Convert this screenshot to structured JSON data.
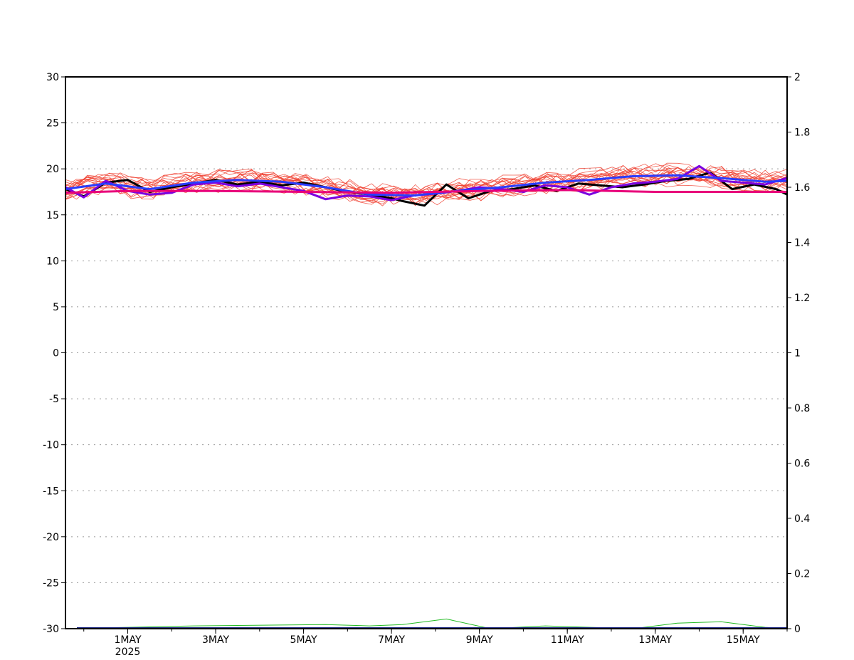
{
  "chart_data": {
    "type": "line",
    "title": "",
    "xlabel": "",
    "ylabel": "",
    "y2label": "",
    "x_range_days": [
      "2025-04-29T14:00",
      "2025-05-16T00:00"
    ],
    "x_ticks": [
      {
        "date": "2025-05-01",
        "label": "1MAY",
        "sublabel": "2025"
      },
      {
        "date": "2025-05-03",
        "label": "3MAY",
        "sublabel": ""
      },
      {
        "date": "2025-05-05",
        "label": "5MAY",
        "sublabel": ""
      },
      {
        "date": "2025-05-07",
        "label": "7MAY",
        "sublabel": ""
      },
      {
        "date": "2025-05-09",
        "label": "9MAY",
        "sublabel": ""
      },
      {
        "date": "2025-05-11",
        "label": "11MAY",
        "sublabel": ""
      },
      {
        "date": "2025-05-13",
        "label": "13MAY",
        "sublabel": ""
      },
      {
        "date": "2025-05-15",
        "label": "15MAY",
        "sublabel": ""
      }
    ],
    "ylim": [
      -30,
      30
    ],
    "y_ticks": [
      "30",
      "25",
      "20",
      "15",
      "10",
      "5",
      "0",
      "-5",
      "-10",
      "-15",
      "-20",
      "-25",
      "-30"
    ],
    "y2lim": [
      0,
      2
    ],
    "y2_ticks": [
      "2",
      "1.8",
      "1.6",
      "1.4",
      "1.2",
      "1",
      "0.8",
      "0.6",
      "0.4",
      "0.2",
      "0"
    ],
    "grid": true,
    "series": [
      {
        "color": "#000000",
        "width": 3,
        "axis": "left",
        "x": [
          "2025-04-29T14:00",
          "2025-04-30T00:00",
          "2025-04-30T12:00",
          "2025-05-01T00:00",
          "2025-05-01T12:00",
          "2025-05-02T00:00",
          "2025-05-02T12:00",
          "2025-05-03T00:00",
          "2025-05-03T12:00",
          "2025-05-04T00:00",
          "2025-05-04T12:00",
          "2025-05-05T00:00",
          "2025-05-05T12:00",
          "2025-05-06T00:00",
          "2025-05-06T12:00",
          "2025-05-07T00:00",
          "2025-05-07T06:00",
          "2025-05-07T18:00",
          "2025-05-08T06:00",
          "2025-05-08T18:00",
          "2025-05-09T06:00",
          "2025-05-09T18:00",
          "2025-05-10T06:00",
          "2025-05-10T18:00",
          "2025-05-11T06:00",
          "2025-05-11T18:00",
          "2025-05-12T06:00",
          "2025-05-12T18:00",
          "2025-05-13T06:00",
          "2025-05-13T18:00",
          "2025-05-14T06:00",
          "2025-05-14T18:00",
          "2025-05-15T06:00",
          "2025-05-15T18:00",
          "2025-05-16T00:00"
        ],
        "y": [
          17.8,
          17.0,
          18.5,
          18.8,
          17.5,
          18.0,
          18.4,
          18.8,
          18.3,
          18.6,
          18.2,
          18.5,
          18.0,
          17.5,
          17.2,
          16.8,
          16.5,
          16.0,
          18.3,
          16.8,
          17.6,
          17.8,
          18.2,
          17.6,
          18.4,
          18.2,
          18.0,
          18.3,
          18.7,
          18.9,
          19.6,
          17.8,
          18.3,
          17.8,
          17.2
        ]
      },
      {
        "color": "#7b00e0",
        "width": 3,
        "axis": "left",
        "x": [
          "2025-04-29T14:00",
          "2025-04-30T00:00",
          "2025-04-30T12:00",
          "2025-05-01T00:00",
          "2025-05-01T12:00",
          "2025-05-02T00:00",
          "2025-05-02T12:00",
          "2025-05-03T00:00",
          "2025-05-03T12:00",
          "2025-05-04T00:00",
          "2025-05-04T12:00",
          "2025-05-05T00:00",
          "2025-05-05T12:00",
          "2025-05-06T00:00",
          "2025-05-06T12:00",
          "2025-05-07T00:00",
          "2025-05-07T12:00",
          "2025-05-08T00:00",
          "2025-05-08T12:00",
          "2025-05-09T00:00",
          "2025-05-09T12:00",
          "2025-05-10T00:00",
          "2025-05-10T12:00",
          "2025-05-11T00:00",
          "2025-05-11T12:00",
          "2025-05-12T00:00",
          "2025-05-12T12:00",
          "2025-05-13T00:00",
          "2025-05-13T12:00",
          "2025-05-14T00:00",
          "2025-05-14T12:00",
          "2025-05-15T00:00",
          "2025-05-15T12:00",
          "2025-05-16T00:00"
        ],
        "y": [
          18.0,
          16.9,
          18.7,
          17.6,
          17.2,
          17.4,
          18.3,
          18.5,
          18.1,
          18.4,
          18.0,
          17.6,
          16.7,
          17.1,
          17.0,
          16.6,
          17.1,
          17.3,
          17.6,
          18.0,
          17.8,
          17.5,
          18.2,
          18.0,
          17.2,
          18.0,
          18.4,
          18.6,
          18.9,
          20.3,
          18.7,
          18.5,
          18.3,
          19.0
        ]
      },
      {
        "color": "#2a3cff",
        "width": 3,
        "axis": "left",
        "x": [
          "2025-04-29T14:00",
          "2025-04-30T12:00",
          "2025-05-01T12:00",
          "2025-05-02T12:00",
          "2025-05-03T12:00",
          "2025-05-04T12:00",
          "2025-05-05T12:00",
          "2025-05-06T12:00",
          "2025-05-07T12:00",
          "2025-05-08T12:00",
          "2025-05-09T12:00",
          "2025-05-10T12:00",
          "2025-05-11T12:00",
          "2025-05-12T12:00",
          "2025-05-13T12:00",
          "2025-05-14T12:00",
          "2025-05-15T12:00",
          "2025-05-16T00:00"
        ],
        "y": [
          17.8,
          18.4,
          17.8,
          18.5,
          18.8,
          18.6,
          18.0,
          17.2,
          17.1,
          17.6,
          18.0,
          18.5,
          18.8,
          19.2,
          19.3,
          19.0,
          18.6,
          18.7
        ]
      },
      {
        "color": "#e8007a",
        "width": 3,
        "axis": "left",
        "x": [
          "2025-04-29T14:00",
          "2025-05-01T00:00",
          "2025-05-03T00:00",
          "2025-05-05T00:00",
          "2025-05-07T00:00",
          "2025-05-09T00:00",
          "2025-05-11T00:00",
          "2025-05-13T00:00",
          "2025-05-15T00:00",
          "2025-05-16T00:00"
        ],
        "y": [
          17.4,
          17.6,
          17.6,
          17.5,
          17.4,
          17.6,
          17.7,
          17.5,
          17.5,
          17.5
        ]
      }
    ],
    "ensemble": {
      "color": "#f04030",
      "members": 20,
      "y_band": [
        15.5,
        20.8
      ],
      "note_color_green": "#22bb22"
    },
    "bottom_series": {
      "color": "#22bb22",
      "axis": "right",
      "x": [
        "2025-04-29T14:00",
        "2025-05-01T00:00",
        "2025-05-02T12:00",
        "2025-05-05T12:00",
        "2025-05-06T12:00",
        "2025-05-07T06:00",
        "2025-05-08T06:00",
        "2025-05-09T06:00",
        "2025-05-10T12:00",
        "2025-05-12T12:00",
        "2025-05-13T12:00",
        "2025-05-14T12:00",
        "2025-05-15T12:00",
        "2025-05-16T00:00"
      ],
      "y": [
        0.0,
        0.005,
        0.01,
        0.015,
        0.01,
        0.015,
        0.035,
        0.0,
        0.01,
        0.0,
        0.02,
        0.025,
        0.005,
        0.0
      ]
    }
  }
}
